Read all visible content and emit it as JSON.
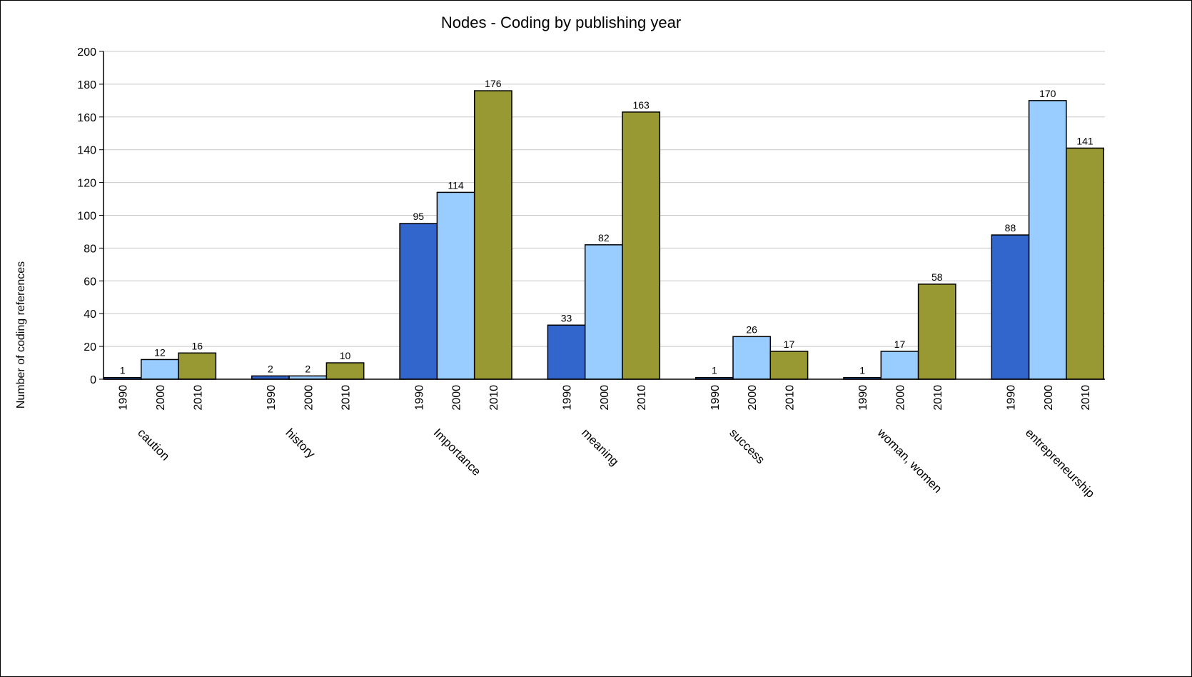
{
  "chart_data": {
    "type": "bar",
    "title": "Nodes - Coding by publishing year",
    "xlabel": "",
    "ylabel": "Number of coding references",
    "ylim": [
      0,
      200
    ],
    "yticks": [
      0,
      20,
      40,
      60,
      80,
      100,
      120,
      140,
      160,
      180,
      200
    ],
    "grid": true,
    "categories": [
      "caution",
      "history",
      "Importance",
      "meaning",
      "success",
      "woman, women",
      "entrepreneurship"
    ],
    "series": [
      {
        "name": "1990",
        "color": "#3366CC",
        "values": [
          1,
          2,
          95,
          33,
          1,
          1,
          88
        ]
      },
      {
        "name": "2000",
        "color": "#99CCFF",
        "values": [
          12,
          2,
          114,
          82,
          26,
          17,
          170
        ]
      },
      {
        "name": "2010",
        "color": "#999933",
        "values": [
          16,
          10,
          176,
          163,
          17,
          58,
          141
        ]
      }
    ]
  }
}
